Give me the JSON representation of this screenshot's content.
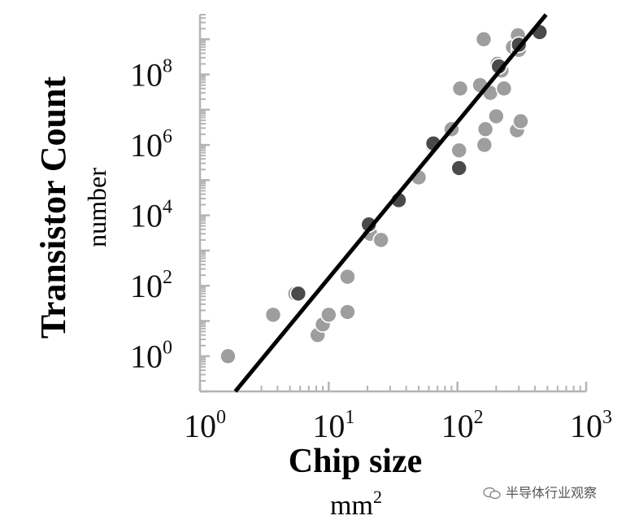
{
  "chart_data": {
    "type": "scatter",
    "title": "",
    "xlabel": "Chip size",
    "xlabel_unit_base": "mm",
    "xlabel_unit_exp": "2",
    "ylabel": "Transistor Count",
    "ylabel_unit": "number",
    "x_scale": "log",
    "y_scale": "log",
    "xlim": [
      1,
      1000
    ],
    "ylim": [
      0.1,
      5000000000
    ],
    "x_ticks": [
      {
        "base": "10",
        "exp": "0",
        "value": 1
      },
      {
        "base": "10",
        "exp": "1",
        "value": 10
      },
      {
        "base": "10",
        "exp": "2",
        "value": 100
      },
      {
        "base": "10",
        "exp": "3",
        "value": 1000
      }
    ],
    "y_ticks": [
      {
        "base": "10",
        "exp": "0",
        "value": 1
      },
      {
        "base": "10",
        "exp": "2",
        "value": 100
      },
      {
        "base": "10",
        "exp": "4",
        "value": 10000
      },
      {
        "base": "10",
        "exp": "6",
        "value": 1000000
      },
      {
        "base": "10",
        "exp": "8",
        "value": 100000000
      }
    ],
    "colors": {
      "light": "#9e9e9e",
      "dark": "#4a4a4a",
      "outline": "#ffffff",
      "fit_line": "#000000",
      "axis": "#b4b4b4"
    },
    "series": [
      {
        "style": "light",
        "points": [
          {
            "x": 1.65,
            "y": 1.0
          },
          {
            "x": 3.7,
            "y": 15
          },
          {
            "x": 5.5,
            "y": 60
          },
          {
            "x": 8.2,
            "y": 4
          },
          {
            "x": 9.0,
            "y": 8
          },
          {
            "x": 10.0,
            "y": 15
          },
          {
            "x": 14.0,
            "y": 18
          },
          {
            "x": 14.0,
            "y": 180
          },
          {
            "x": 21.0,
            "y": 3000
          },
          {
            "x": 25.5,
            "y": 2000
          },
          {
            "x": 50.0,
            "y": 120000
          },
          {
            "x": 64.0,
            "y": 1000000
          },
          {
            "x": 90.0,
            "y": 2800000
          },
          {
            "x": 103.0,
            "y": 700000
          },
          {
            "x": 105.0,
            "y": 40000000
          },
          {
            "x": 150.0,
            "y": 50000000
          },
          {
            "x": 160.0,
            "y": 1000000000
          },
          {
            "x": 162.0,
            "y": 1000000
          },
          {
            "x": 165.0,
            "y": 2800000
          },
          {
            "x": 180.0,
            "y": 30000000
          },
          {
            "x": 200.0,
            "y": 6500000
          },
          {
            "x": 205.0,
            "y": 200000000
          },
          {
            "x": 220.0,
            "y": 130000000
          },
          {
            "x": 230.0,
            "y": 40000000
          },
          {
            "x": 270.0,
            "y": 600000000
          },
          {
            "x": 290.0,
            "y": 2600000
          },
          {
            "x": 295.0,
            "y": 1300000000
          },
          {
            "x": 300.0,
            "y": 500000000
          },
          {
            "x": 310.0,
            "y": 4700000
          }
        ]
      },
      {
        "style": "dark",
        "points": [
          {
            "x": 5.8,
            "y": 60
          },
          {
            "x": 20.5,
            "y": 5500
          },
          {
            "x": 35.0,
            "y": 27000
          },
          {
            "x": 65.0,
            "y": 1100000
          },
          {
            "x": 103.0,
            "y": 220000
          },
          {
            "x": 210.0,
            "y": 170000000
          },
          {
            "x": 300.0,
            "y": 700000000
          },
          {
            "x": 435.0,
            "y": 1600000000
          }
        ]
      }
    ],
    "fit_line": {
      "x1": 1.88,
      "y1": 0.1,
      "x2": 488,
      "y2": 5000000000
    }
  },
  "watermark": {
    "text": "半导体行业观察"
  }
}
